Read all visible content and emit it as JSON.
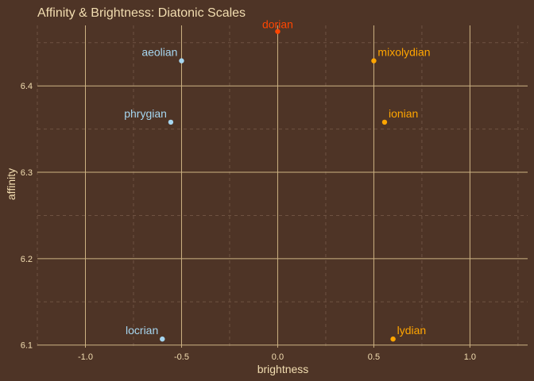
{
  "chart_data": {
    "type": "scatter",
    "title": "Affinity & Brightness: Diatonic Scales",
    "xlabel": "brightness",
    "ylabel": "affinity",
    "xlim": [
      -1.25,
      1.3
    ],
    "ylim": [
      6.097,
      6.47
    ],
    "x_ticks": [
      -1.0,
      -0.5,
      0.0,
      0.5,
      1.0
    ],
    "x_tick_labels": [
      "-1.0",
      "-0.5",
      "0.0",
      "0.5",
      "1.0"
    ],
    "y_ticks": [
      6.1,
      6.2,
      6.3,
      6.4
    ],
    "y_tick_labels": [
      "6.1",
      "6.2",
      "6.3",
      "6.4"
    ],
    "grid": true,
    "colors": {
      "background": "#4e3426",
      "major_grid": "#cdb383",
      "minor_grid": "#6e5242",
      "text": "#f2ddb0"
    },
    "points": [
      {
        "label": "dorian",
        "x": 0.0,
        "y": 6.463,
        "color": "#ff4500",
        "anchor": "middle"
      },
      {
        "label": "aeolian",
        "x": -0.5,
        "y": 6.429,
        "color": "#a6d6f0",
        "anchor": "end"
      },
      {
        "label": "mixolydian",
        "x": 0.5,
        "y": 6.429,
        "color": "#ffa500",
        "anchor": "start"
      },
      {
        "label": "phrygian",
        "x": -0.556,
        "y": 6.358,
        "color": "#a6d6f0",
        "anchor": "end"
      },
      {
        "label": "ionian",
        "x": 0.556,
        "y": 6.358,
        "color": "#ffa500",
        "anchor": "start"
      },
      {
        "label": "locrian",
        "x": -0.6,
        "y": 6.107,
        "color": "#a6d6f0",
        "anchor": "end"
      },
      {
        "label": "lydian",
        "x": 0.6,
        "y": 6.107,
        "color": "#ffa500",
        "anchor": "start"
      }
    ]
  }
}
